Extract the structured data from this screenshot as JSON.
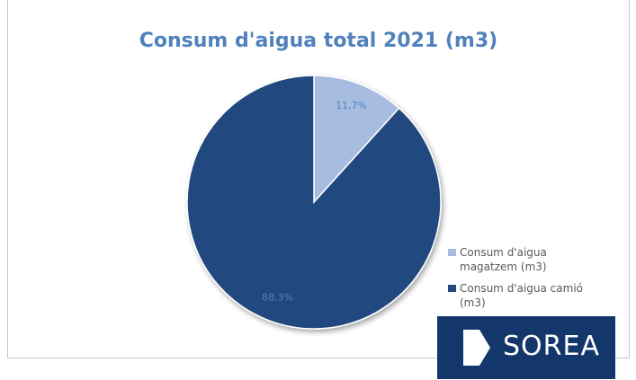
{
  "chart_data": {
    "type": "pie",
    "title": "Consum d'aigua total 2021 (m3)",
    "categories": [
      "Consum d'aigua magatzem (m3)",
      "Consum d'aigua camió (m3)"
    ],
    "values": [
      11.7,
      88.3
    ],
    "data_labels": [
      "11,7%",
      "88,3%"
    ],
    "colors": [
      "#a7bde0",
      "#23497f"
    ],
    "legend_position": "right"
  },
  "legend": {
    "items": [
      {
        "label": "Consum d'aigua magatzem (m3)",
        "color": "#a7bde0"
      },
      {
        "label": "Consum d'aigua camió (m3)",
        "color": "#23497f"
      }
    ]
  },
  "logo": {
    "text": "SOREA"
  }
}
